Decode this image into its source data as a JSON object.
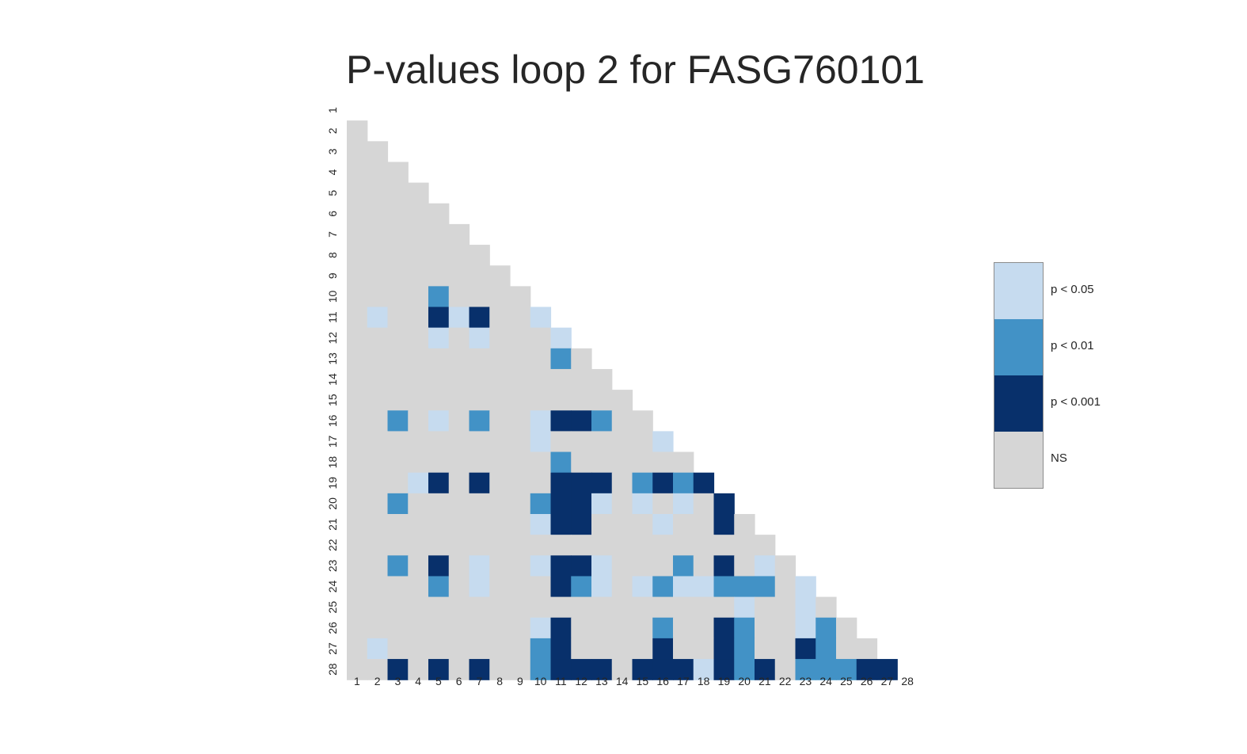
{
  "chart_data": {
    "type": "heatmap",
    "title": "P-values loop 2 for FASG760101",
    "xlabel": "",
    "ylabel": "",
    "x_categories": [
      "1",
      "2",
      "3",
      "4",
      "5",
      "6",
      "7",
      "8",
      "9",
      "10",
      "11",
      "12",
      "13",
      "14",
      "15",
      "16",
      "17",
      "18",
      "19",
      "20",
      "21",
      "22",
      "23",
      "24",
      "25",
      "26",
      "27",
      "28"
    ],
    "y_categories": [
      "1",
      "2",
      "3",
      "4",
      "5",
      "6",
      "7",
      "8",
      "9",
      "10",
      "11",
      "12",
      "13",
      "14",
      "15",
      "16",
      "17",
      "18",
      "19",
      "20",
      "21",
      "22",
      "23",
      "24",
      "25",
      "26",
      "27",
      "28"
    ],
    "mask": "lower-triangle (row > column)",
    "level_meaning": {
      "0": "NS",
      "1": "p < 0.05",
      "2": "p < 0.01",
      "3": "p < 0.001"
    },
    "legend": [
      {
        "label": "p < 0.05",
        "color": "#c6dbef"
      },
      {
        "label": "p < 0.01",
        "color": "#4292c6"
      },
      {
        "label": "p < 0.001",
        "color": "#08306b"
      },
      {
        "label": "NS",
        "color": "#d6d6d6"
      }
    ],
    "legend_position": "right",
    "grid": false,
    "rows": [
      [],
      [
        0
      ],
      [
        0,
        0
      ],
      [
        0,
        0,
        0
      ],
      [
        0,
        0,
        0,
        0
      ],
      [
        0,
        0,
        0,
        0,
        0
      ],
      [
        0,
        0,
        0,
        0,
        0,
        0
      ],
      [
        0,
        0,
        0,
        0,
        0,
        0,
        0
      ],
      [
        0,
        0,
        0,
        0,
        0,
        0,
        0,
        0
      ],
      [
        0,
        0,
        0,
        0,
        2,
        0,
        0,
        0,
        0
      ],
      [
        0,
        1,
        0,
        0,
        3,
        1,
        3,
        0,
        0,
        1
      ],
      [
        0,
        0,
        0,
        0,
        1,
        0,
        1,
        0,
        0,
        0,
        1
      ],
      [
        0,
        0,
        0,
        0,
        0,
        0,
        0,
        0,
        0,
        0,
        2,
        0
      ],
      [
        0,
        0,
        0,
        0,
        0,
        0,
        0,
        0,
        0,
        0,
        0,
        0,
        0
      ],
      [
        0,
        0,
        0,
        0,
        0,
        0,
        0,
        0,
        0,
        0,
        0,
        0,
        0,
        0
      ],
      [
        0,
        0,
        2,
        0,
        1,
        0,
        2,
        0,
        0,
        1,
        3,
        3,
        2,
        0,
        0
      ],
      [
        0,
        0,
        0,
        0,
        0,
        0,
        0,
        0,
        0,
        1,
        0,
        0,
        0,
        0,
        0,
        1
      ],
      [
        0,
        0,
        0,
        0,
        0,
        0,
        0,
        0,
        0,
        0,
        2,
        0,
        0,
        0,
        0,
        0,
        0
      ],
      [
        0,
        0,
        0,
        1,
        3,
        0,
        3,
        0,
        0,
        0,
        3,
        3,
        3,
        0,
        2,
        3,
        2,
        3
      ],
      [
        0,
        0,
        2,
        0,
        0,
        0,
        0,
        0,
        0,
        2,
        3,
        3,
        1,
        0,
        1,
        0,
        1,
        0,
        3
      ],
      [
        0,
        0,
        0,
        0,
        0,
        0,
        0,
        0,
        0,
        1,
        3,
        3,
        0,
        0,
        0,
        1,
        0,
        0,
        3,
        0
      ],
      [
        0,
        0,
        0,
        0,
        0,
        0,
        0,
        0,
        0,
        0,
        0,
        0,
        0,
        0,
        0,
        0,
        0,
        0,
        0,
        0,
        0
      ],
      [
        0,
        0,
        2,
        0,
        3,
        0,
        1,
        0,
        0,
        1,
        3,
        3,
        1,
        0,
        0,
        0,
        2,
        0,
        3,
        0,
        1,
        0
      ],
      [
        0,
        0,
        0,
        0,
        2,
        0,
        1,
        0,
        0,
        0,
        3,
        2,
        1,
        0,
        1,
        2,
        1,
        1,
        2,
        2,
        2,
        0,
        1
      ],
      [
        0,
        0,
        0,
        0,
        0,
        0,
        0,
        0,
        0,
        0,
        0,
        0,
        0,
        0,
        0,
        0,
        0,
        0,
        0,
        1,
        0,
        0,
        1,
        0
      ],
      [
        0,
        0,
        0,
        0,
        0,
        0,
        0,
        0,
        0,
        1,
        3,
        0,
        0,
        0,
        0,
        2,
        0,
        0,
        3,
        2,
        0,
        0,
        1,
        2,
        0
      ],
      [
        0,
        1,
        0,
        0,
        0,
        0,
        0,
        0,
        0,
        2,
        3,
        0,
        0,
        0,
        0,
        3,
        0,
        0,
        3,
        2,
        0,
        0,
        3,
        2,
        0,
        0
      ],
      [
        0,
        0,
        3,
        0,
        3,
        0,
        3,
        0,
        0,
        2,
        3,
        3,
        3,
        0,
        3,
        3,
        3,
        1,
        3,
        2,
        3,
        0,
        2,
        2,
        2,
        3,
        3
      ]
    ]
  }
}
